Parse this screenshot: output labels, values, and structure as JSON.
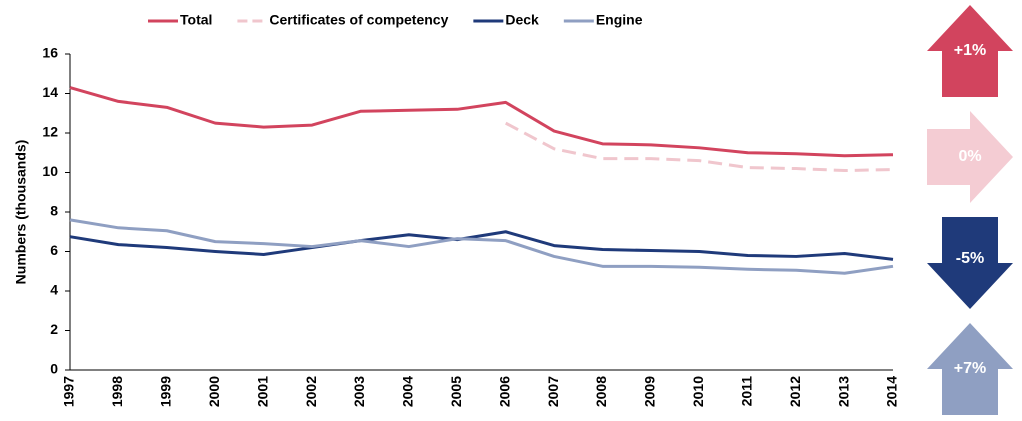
{
  "chart_data": {
    "type": "line",
    "y_label": "Numbers (thousands)",
    "x": [
      "1997",
      "1998",
      "1999",
      "2000",
      "2001",
      "2002",
      "2003",
      "2004",
      "2005",
      "2006",
      "2007",
      "2008",
      "2009",
      "2010",
      "2011",
      "2012",
      "2013",
      "2014"
    ],
    "series": [
      {
        "name": "Total",
        "color": "#d2445e",
        "dash": false,
        "values": [
          14.3,
          13.6,
          13.3,
          12.5,
          12.3,
          12.4,
          13.1,
          13.15,
          13.2,
          13.55,
          12.1,
          11.45,
          11.4,
          11.25,
          11.0,
          10.95,
          10.85,
          10.9
        ]
      },
      {
        "name": "Certificates of competency",
        "color": "#f0c6cd",
        "dash": true,
        "values": [
          null,
          null,
          null,
          null,
          null,
          null,
          null,
          null,
          null,
          12.5,
          11.2,
          10.7,
          10.7,
          10.6,
          10.25,
          10.2,
          10.1,
          10.15
        ]
      },
      {
        "name": "Deck",
        "color": "#1f3a7a",
        "dash": false,
        "values": [
          6.75,
          6.35,
          6.2,
          6.0,
          5.85,
          6.2,
          6.55,
          6.85,
          6.6,
          7.0,
          6.3,
          6.1,
          6.05,
          6.0,
          5.8,
          5.75,
          5.9,
          5.6
        ]
      },
      {
        "name": "Engine",
        "color": "#8f9fc2",
        "dash": false,
        "values": [
          7.6,
          7.2,
          7.05,
          6.5,
          6.4,
          6.25,
          6.55,
          6.25,
          6.65,
          6.55,
          5.75,
          5.25,
          5.25,
          5.2,
          5.1,
          5.05,
          4.9,
          5.25
        ]
      }
    ],
    "ylim": [
      0,
      16
    ],
    "yticks": [
      0,
      2,
      4,
      6,
      8,
      10,
      12,
      14,
      16
    ],
    "annotations": [
      {
        "label": "+1%",
        "direction": "up",
        "color": "#d2445e"
      },
      {
        "label": "0%",
        "direction": "right",
        "color": "#f4ccd3"
      },
      {
        "label": "-5%",
        "direction": "down",
        "color": "#1f3a7a"
      },
      {
        "label": "+7%",
        "direction": "up",
        "color": "#8f9fc2"
      }
    ]
  }
}
